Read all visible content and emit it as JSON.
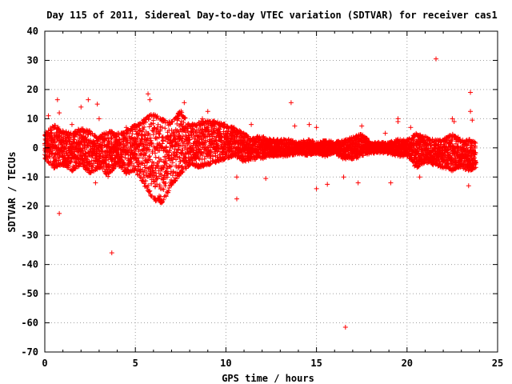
{
  "chart_data": {
    "type": "scatter",
    "title": "Day 115 of 2011, Sidereal Day-to-day VTEC variation (SDTVAR) for receiver cas1",
    "xlabel": "GPS time / hours",
    "ylabel": "SDTVAR / TECUs",
    "xlim": [
      0,
      25
    ],
    "ylim": [
      -70,
      40
    ],
    "xticks": [
      "0",
      "5",
      "10",
      "15",
      "20",
      "25"
    ],
    "yticks": [
      "40",
      "30",
      "20",
      "10",
      "0",
      "-10",
      "-20",
      "-30",
      "-40",
      "-50",
      "-60",
      "-70"
    ],
    "grid": true,
    "marker": "+",
    "color": "#ff0000",
    "dense_band": [
      [
        0.0,
        -4,
        5
      ],
      [
        0.5,
        -7,
        8
      ],
      [
        1.0,
        -6,
        6
      ],
      [
        1.5,
        -8,
        5
      ],
      [
        2.0,
        -6,
        7
      ],
      [
        2.5,
        -9,
        6
      ],
      [
        3.0,
        -7,
        4
      ],
      [
        3.5,
        -10,
        6
      ],
      [
        4.0,
        -6,
        5
      ],
      [
        4.5,
        -9,
        6
      ],
      [
        5.0,
        -8,
        8
      ],
      [
        5.5,
        -13,
        10
      ],
      [
        6.0,
        -18,
        12
      ],
      [
        6.5,
        -19,
        10
      ],
      [
        7.0,
        -13,
        9
      ],
      [
        7.5,
        -9,
        13
      ],
      [
        8.0,
        -6,
        8
      ],
      [
        8.5,
        -7,
        9
      ],
      [
        9.0,
        -6,
        10
      ],
      [
        9.5,
        -5,
        9
      ],
      [
        10.0,
        -4,
        8
      ],
      [
        10.5,
        -3,
        7
      ],
      [
        11.0,
        -5,
        5
      ],
      [
        11.5,
        -4,
        4
      ],
      [
        12.0,
        -4,
        4
      ],
      [
        12.5,
        -3,
        3
      ],
      [
        13.0,
        -3,
        3
      ],
      [
        13.5,
        -3,
        3
      ],
      [
        14.0,
        -2,
        2
      ],
      [
        14.5,
        -3,
        3
      ],
      [
        15.0,
        -2,
        2
      ],
      [
        15.5,
        -3,
        3
      ],
      [
        16.0,
        -2,
        2
      ],
      [
        16.5,
        -4,
        3
      ],
      [
        17.0,
        -4,
        4
      ],
      [
        17.5,
        -3,
        5
      ],
      [
        18.0,
        -2,
        2
      ],
      [
        18.5,
        -2,
        2
      ],
      [
        19.0,
        -2,
        2
      ],
      [
        19.5,
        -3,
        3
      ],
      [
        20.0,
        -3,
        3
      ],
      [
        20.5,
        -7,
        5
      ],
      [
        21.0,
        -5,
        4
      ],
      [
        21.5,
        -6,
        3
      ],
      [
        22.0,
        -7,
        3
      ],
      [
        22.5,
        -8,
        5
      ],
      [
        23.0,
        -7,
        3
      ],
      [
        23.5,
        -8,
        3
      ],
      [
        23.8,
        -7,
        2
      ]
    ],
    "outliers": [
      [
        0.2,
        11
      ],
      [
        0.7,
        16.5
      ],
      [
        0.8,
        12
      ],
      [
        0.8,
        -22.5
      ],
      [
        2.0,
        14
      ],
      [
        2.4,
        16.5
      ],
      [
        2.9,
        15
      ],
      [
        3.0,
        10
      ],
      [
        3.7,
        -36
      ],
      [
        4.5,
        7
      ],
      [
        5.7,
        18.5
      ],
      [
        5.8,
        16.5
      ],
      [
        7.7,
        15.5
      ],
      [
        8.7,
        10
      ],
      [
        9.0,
        12.5
      ],
      [
        10.6,
        -17.5
      ],
      [
        10.6,
        -10
      ],
      [
        11.4,
        8
      ],
      [
        12.2,
        -10.5
      ],
      [
        13.6,
        15.5
      ],
      [
        13.8,
        7.5
      ],
      [
        14.6,
        8
      ],
      [
        15.0,
        -14
      ],
      [
        15.0,
        7
      ],
      [
        15.6,
        -12.5
      ],
      [
        16.5,
        -10
      ],
      [
        16.6,
        -61.5
      ],
      [
        17.3,
        -12
      ],
      [
        17.5,
        7.5
      ],
      [
        18.8,
        5
      ],
      [
        19.1,
        -12
      ],
      [
        19.5,
        10
      ],
      [
        19.5,
        9
      ],
      [
        20.2,
        7
      ],
      [
        21.6,
        30.5
      ],
      [
        22.5,
        10
      ],
      [
        22.6,
        9
      ],
      [
        23.5,
        19
      ],
      [
        23.5,
        12.5
      ],
      [
        23.6,
        9.5
      ],
      [
        23.4,
        -13
      ],
      [
        20.7,
        -10
      ],
      [
        2.8,
        -12
      ],
      [
        1.5,
        8
      ]
    ]
  }
}
